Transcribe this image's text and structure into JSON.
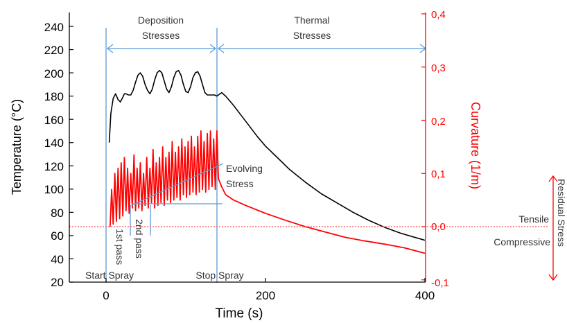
{
  "chart_data": {
    "type": "line",
    "xlabel": "Time (s)",
    "ylabel": "Temperature (°C)",
    "y2label": "Curvature (1/m)",
    "xlim": [
      -50,
      410
    ],
    "ylim": [
      20,
      248
    ],
    "y2lim": [
      -0.1,
      0.4
    ],
    "x_ticks": [
      "0",
      "200",
      "400"
    ],
    "y_ticks": [
      "20",
      "40",
      "60",
      "80",
      "100",
      "120",
      "140",
      "160",
      "180",
      "200",
      "220",
      "240"
    ],
    "y2_ticks": [
      "-0,1",
      "0,0",
      "0,1",
      "0,2",
      "0,3",
      "0,4"
    ],
    "colors": {
      "temperature": "#000000",
      "curvature": "#ff0000",
      "annotation": "#5b9bd5",
      "zero_line": "#ff4d4d"
    },
    "series": [
      {
        "axis": "left",
        "color": "#000000",
        "x": [
          4,
          6,
          9,
          12,
          15,
          18,
          21,
          23,
          25,
          28,
          31,
          34,
          37,
          40,
          43,
          46,
          49,
          52,
          55,
          58,
          61,
          64,
          67,
          70,
          73,
          76,
          79,
          82,
          85,
          88,
          91,
          94,
          97,
          100,
          103,
          106,
          109,
          112,
          115,
          118,
          121,
          124,
          127,
          130,
          133,
          136,
          139,
          145,
          150,
          160,
          170,
          180,
          190,
          200,
          215,
          230,
          250,
          270,
          290,
          310,
          330,
          350,
          370,
          390,
          400
        ],
        "values": [
          140,
          165,
          178,
          182,
          177,
          175,
          179,
          182,
          182,
          181,
          181,
          185,
          192,
          198,
          200,
          197,
          190,
          185,
          182,
          186,
          194,
          200,
          202,
          200,
          193,
          186,
          183,
          188,
          196,
          201,
          202,
          198,
          190,
          184,
          183,
          188,
          196,
          200,
          201,
          197,
          190,
          183,
          181,
          181,
          181,
          181,
          180,
          183,
          180,
          172,
          163,
          154,
          145,
          137,
          127,
          117,
          106,
          96,
          88,
          80,
          73,
          67,
          62,
          58,
          56
        ]
      },
      {
        "axis": "right",
        "color": "#ff0000",
        "x": [
          5,
          7,
          9,
          11,
          13,
          15,
          17,
          19,
          21,
          23,
          25,
          27,
          29,
          31,
          33,
          35,
          37,
          39,
          41,
          43,
          45,
          47,
          49,
          51,
          53,
          55,
          57,
          59,
          61,
          63,
          65,
          67,
          69,
          71,
          73,
          75,
          77,
          79,
          81,
          83,
          85,
          87,
          89,
          91,
          93,
          95,
          97,
          99,
          101,
          103,
          105,
          107,
          109,
          111,
          113,
          115,
          117,
          119,
          121,
          123,
          125,
          127,
          129,
          131,
          133,
          135,
          137,
          139,
          141,
          145,
          150,
          160,
          175,
          200,
          225,
          250,
          275,
          300,
          325,
          350,
          375,
          400
        ],
        "values": [
          0.0,
          0.07,
          0.005,
          0.1,
          0.01,
          0.11,
          0.015,
          0.12,
          0.02,
          0.13,
          0.03,
          0.11,
          0.025,
          0.1,
          0.035,
          0.135,
          0.03,
          0.11,
          0.035,
          0.12,
          0.03,
          0.1,
          0.04,
          0.13,
          0.035,
          0.11,
          0.045,
          0.145,
          0.035,
          0.12,
          0.04,
          0.13,
          0.045,
          0.15,
          0.04,
          0.13,
          0.05,
          0.14,
          0.045,
          0.16,
          0.05,
          0.14,
          0.055,
          0.15,
          0.05,
          0.165,
          0.06,
          0.15,
          0.055,
          0.16,
          0.06,
          0.17,
          0.065,
          0.15,
          0.06,
          0.17,
          0.065,
          0.18,
          0.07,
          0.16,
          0.065,
          0.175,
          0.07,
          0.18,
          0.075,
          0.165,
          0.07,
          0.18,
          0.09,
          0.075,
          0.06,
          0.05,
          0.04,
          0.025,
          0.012,
          0.0,
          -0.01,
          -0.02,
          -0.027,
          -0.033,
          -0.04,
          -0.05
        ]
      }
    ]
  },
  "annotations": {
    "deposition_stresses": [
      "Deposition",
      "Stresses"
    ],
    "thermal_stresses": [
      "Thermal",
      "Stresses"
    ],
    "evolving_stress": [
      "Evolving",
      "Stress"
    ],
    "first_pass": "1st pass",
    "second_pass": "2nd pass",
    "start_spray": "Start Spray",
    "stop_spray": "Stop Spray",
    "tensile": "Tensile",
    "compressive": "Compressive",
    "residual_stress": "Residual Stress"
  }
}
